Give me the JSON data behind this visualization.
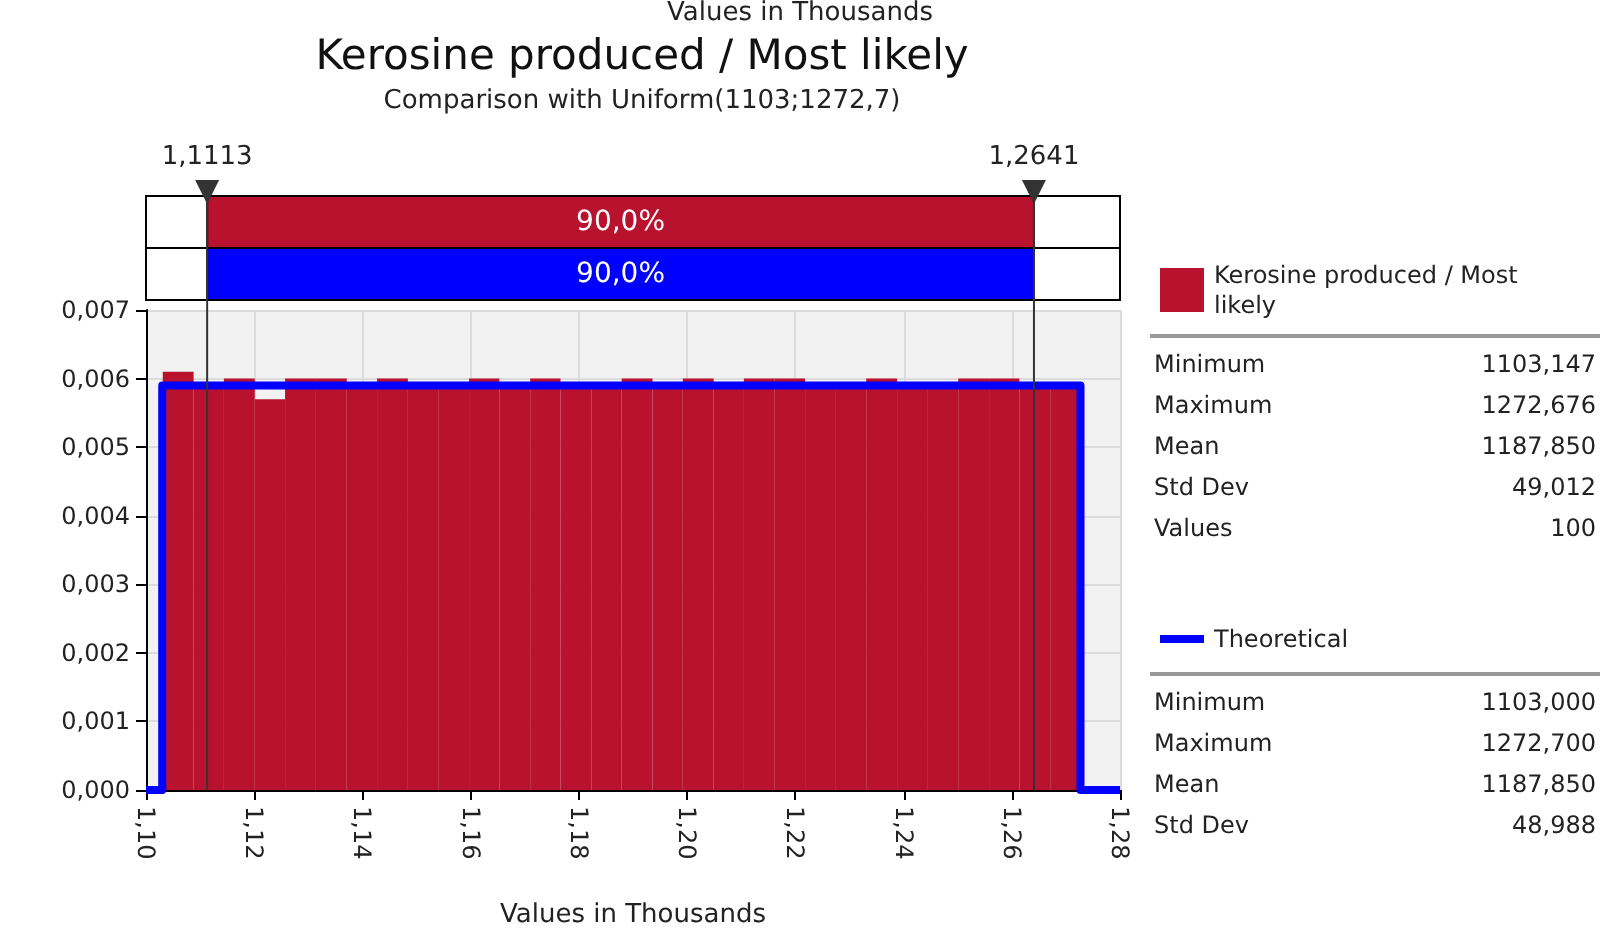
{
  "chart_data": {
    "type": "histogram",
    "title": "Kerosine produced / Most likely",
    "subtitle": "Comparison with Uniform(1103;1272,7)",
    "xlabel": "Values in Thousands",
    "bins": [
      1.1031,
      1.1088,
      1.1144,
      1.1201,
      1.1257,
      1.1314,
      1.1371,
      1.1427,
      1.1484,
      1.154,
      1.1597,
      1.1653,
      1.171,
      1.1766,
      1.1823,
      1.1879,
      1.1936,
      1.1992,
      1.2049,
      1.2105,
      1.2162,
      1.2218,
      1.2275,
      1.2331,
      1.2388,
      1.2445,
      1.2501,
      1.2558,
      1.2614,
      1.2671,
      1.2727
    ],
    "series": [
      {
        "name": "Kerosine produced / Most likely",
        "color": "#b8122f",
        "values": [
          0.0061,
          0.0059,
          0.006,
          0.0057,
          0.006,
          0.006,
          0.0059,
          0.006,
          0.0059,
          0.0059,
          0.006,
          0.0059,
          0.006,
          0.0059,
          0.0059,
          0.006,
          0.0059,
          0.006,
          0.0059,
          0.006,
          0.006,
          0.0059,
          0.0059,
          0.006,
          0.0059,
          0.0059,
          0.006,
          0.006,
          0.0059,
          0.0059
        ]
      },
      {
        "name": "Theoretical",
        "type": "step",
        "color": "#0000ff",
        "x": [
          1.1,
          1.103,
          1.103,
          1.2727,
          1.2727,
          1.28
        ],
        "values": [
          0,
          0,
          0.0059,
          0.0059,
          0,
          0
        ]
      }
    ],
    "xlim": [
      1.1,
      1.28
    ],
    "xticks": [
      {
        "value": 1.1,
        "label": "1,10"
      },
      {
        "value": 1.12,
        "label": "1,12"
      },
      {
        "value": 1.14,
        "label": "1,14"
      },
      {
        "value": 1.16,
        "label": "1,16"
      },
      {
        "value": 1.18,
        "label": "1,18"
      },
      {
        "value": 1.2,
        "label": "1,20"
      },
      {
        "value": 1.22,
        "label": "1,22"
      },
      {
        "value": 1.24,
        "label": "1,24"
      },
      {
        "value": 1.26,
        "label": "1,26"
      },
      {
        "value": 1.28,
        "label": "1,28"
      }
    ],
    "ylim": [
      0,
      0.007
    ],
    "yticks": [
      {
        "value": 0,
        "label": "0,000"
      },
      {
        "value": 0.001,
        "label": "0,001"
      },
      {
        "value": 0.002,
        "label": "0,002"
      },
      {
        "value": 0.003,
        "label": "0,003"
      },
      {
        "value": 0.004,
        "label": "0,004"
      },
      {
        "value": 0.005,
        "label": "0,005"
      },
      {
        "value": 0.006,
        "label": "0,006"
      },
      {
        "value": 0.007,
        "label": "0,007"
      }
    ],
    "ref_lines": [
      {
        "axis": "x",
        "value": 1.1113,
        "label": "1,1113"
      },
      {
        "axis": "x",
        "value": 1.2641,
        "label": "1,2641"
      }
    ],
    "annotations": [
      "Values in Thousands",
      "90,0%",
      "90,0%",
      "Minimum",
      "1103,147",
      "Maximum",
      "1272,676",
      "Mean",
      "1187,850",
      "Std Dev",
      "49,012",
      "Values",
      "100",
      "Minimum",
      "1103,000",
      "Maximum",
      "1272,700",
      "Mean",
      "1187,850",
      "Std Dev",
      "48,988"
    ],
    "grid": true,
    "legend": "right"
  }
}
